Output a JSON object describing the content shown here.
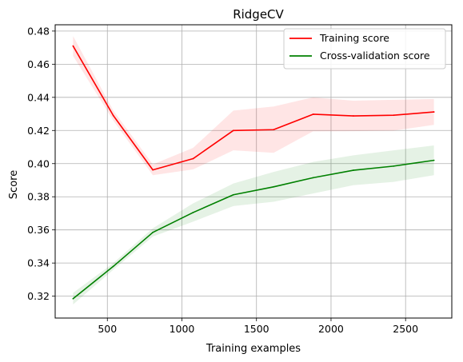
{
  "chart_data": {
    "type": "line",
    "title": "RidgeCV",
    "xlabel": "Training examples",
    "ylabel": "Score",
    "xlim": [
      150,
      2810
    ],
    "ylim": [
      0.3068,
      0.4838
    ],
    "xticks": [
      500,
      1000,
      1500,
      2000,
      2500
    ],
    "yticks": [
      0.32,
      0.34,
      0.36,
      0.38,
      0.4,
      0.42,
      0.44,
      0.46,
      0.48
    ],
    "ytick_labels": [
      "0.32",
      "0.34",
      "0.36",
      "0.38",
      "0.40",
      "0.42",
      "0.44",
      "0.46",
      "0.48"
    ],
    "grid": true,
    "legend_position": "top-right",
    "x": [
      270,
      540,
      805,
      1075,
      1345,
      1615,
      1880,
      2150,
      2420,
      2690
    ],
    "series": [
      {
        "name": "Training score",
        "color": "#ff0000",
        "band_color": "#ff0000",
        "values": [
          0.471,
          0.429,
          0.3962,
          0.403,
          0.42,
          0.4205,
          0.4298,
          0.4288,
          0.4292,
          0.4312
        ],
        "upper": [
          0.477,
          0.432,
          0.3995,
          0.4095,
          0.432,
          0.4345,
          0.44,
          0.438,
          0.4385,
          0.439
        ],
        "lower": [
          0.465,
          0.426,
          0.393,
          0.3965,
          0.408,
          0.4065,
          0.4195,
          0.4196,
          0.4199,
          0.4234
        ]
      },
      {
        "name": "Cross-validation score",
        "color": "#008000",
        "band_color": "#008000",
        "values": [
          0.3185,
          0.338,
          0.3585,
          0.3705,
          0.3812,
          0.386,
          0.3915,
          0.396,
          0.3985,
          0.402
        ],
        "upper": [
          0.322,
          0.34,
          0.361,
          0.376,
          0.388,
          0.395,
          0.401,
          0.405,
          0.408,
          0.411
        ],
        "lower": [
          0.315,
          0.336,
          0.356,
          0.365,
          0.3744,
          0.377,
          0.382,
          0.387,
          0.389,
          0.393
        ]
      }
    ]
  }
}
